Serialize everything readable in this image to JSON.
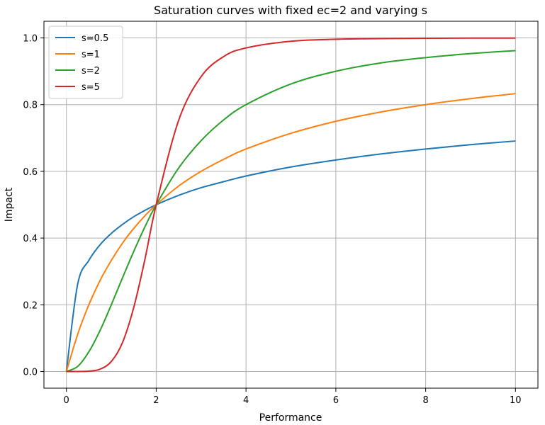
{
  "chart_data": {
    "type": "line",
    "title": "Saturation curves with fixed ec=2 and varying s",
    "xlabel": "Performance",
    "ylabel": "Impact",
    "xlim": [
      -0.5,
      10.5
    ],
    "ylim": [
      -0.05,
      1.05
    ],
    "xticks": [
      0,
      2,
      4,
      6,
      8,
      10
    ],
    "yticks": [
      0.0,
      0.2,
      0.4,
      0.6,
      0.8,
      1.0
    ],
    "xtick_labels": [
      "0",
      "2",
      "4",
      "6",
      "8",
      "10"
    ],
    "ytick_labels": [
      "0.0",
      "0.2",
      "0.4",
      "0.6",
      "0.8",
      "1.0"
    ],
    "grid": true,
    "legend_position": "top-left",
    "x": [
      0,
      0.25,
      0.5,
      0.75,
      1,
      1.25,
      1.5,
      1.75,
      2,
      2.5,
      3,
      3.5,
      4,
      5,
      6,
      7,
      8,
      9,
      10
    ],
    "series": [
      {
        "name": "s=0.5",
        "color": "#1f77b4",
        "values": [
          0,
          0.261,
          0.333,
          0.38,
          0.414,
          0.441,
          0.464,
          0.483,
          0.5,
          0.528,
          0.551,
          0.569,
          0.586,
          0.613,
          0.634,
          0.652,
          0.667,
          0.68,
          0.691
        ]
      },
      {
        "name": "s=1",
        "color": "#ff7f0e",
        "values": [
          0,
          0.111,
          0.2,
          0.273,
          0.333,
          0.385,
          0.429,
          0.467,
          0.5,
          0.556,
          0.6,
          0.636,
          0.667,
          0.714,
          0.75,
          0.778,
          0.8,
          0.818,
          0.833
        ]
      },
      {
        "name": "s=2",
        "color": "#2ca02c",
        "values": [
          0,
          0.015,
          0.059,
          0.123,
          0.2,
          0.281,
          0.36,
          0.434,
          0.5,
          0.61,
          0.692,
          0.754,
          0.8,
          0.862,
          0.9,
          0.925,
          0.941,
          0.953,
          0.962
        ]
      },
      {
        "name": "s=5",
        "color": "#d62728",
        "values": [
          0,
          3e-05,
          0.001,
          0.007,
          0.03,
          0.087,
          0.192,
          0.337,
          0.5,
          0.753,
          0.884,
          0.944,
          0.97,
          0.99,
          0.996,
          0.998,
          0.999,
          0.9995,
          0.9997
        ]
      }
    ]
  }
}
